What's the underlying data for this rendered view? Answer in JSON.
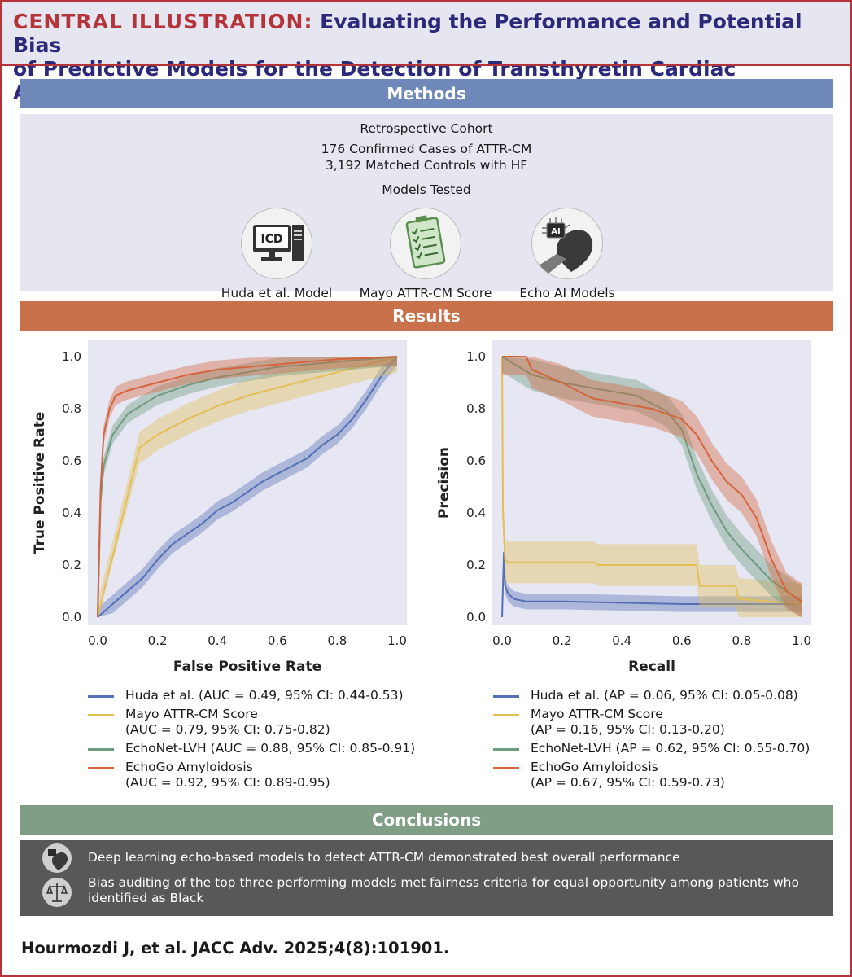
{
  "header": {
    "label": "CENTRAL ILLUSTRATION:",
    "title_line1": "Evaluating the Performance and Potential Bias",
    "title_line2": "of Predictive Models for the Detection of Transthyretin Cardiac Amyloidosis"
  },
  "methods": {
    "heading": "Methods",
    "cohort_title": "Retrospective Cohort",
    "cases": "176 Confirmed Cases of ATTR-CM",
    "controls": "3,192 Matched Controls with HF",
    "models_title": "Models Tested",
    "models": [
      {
        "label": "Huda et al. Model",
        "icon": "computer-icd-icon",
        "icon_text": "ICD"
      },
      {
        "label": "Mayo ATTR-CM Score",
        "icon": "clipboard-checklist-icon"
      },
      {
        "label": "Echo AI Models",
        "icon": "ai-heart-icon",
        "icon_text": "AI"
      }
    ],
    "bar_color": "#6e88b9"
  },
  "results": {
    "heading": "Results",
    "bar_color": "#c8714a"
  },
  "colors": {
    "huda": "#5570b5",
    "mayo": "#e3bf55",
    "echonet": "#6f9b7e",
    "echogo": "#d4643c",
    "plot_bg": "#e6e7f3"
  },
  "chart_data": [
    {
      "type": "line",
      "xlabel": "False Positive Rate",
      "ylabel": "True Positive Rate",
      "xlim": [
        0,
        1
      ],
      "ylim": [
        0,
        1
      ],
      "xticks": [
        "0.0",
        "0.2",
        "0.4",
        "0.6",
        "0.8",
        "1.0"
      ],
      "yticks": [
        "0.0",
        "0.2",
        "0.4",
        "0.6",
        "0.8",
        "1.0"
      ],
      "legend": [
        [
          "Huda et al. (AUC = 0.49, 95% CI: 0.44-0.53)"
        ],
        [
          "Mayo ATTR-CM Score",
          "(AUC = 0.79, 95% CI: 0.75-0.82)"
        ],
        [
          "EchoNet-LVH (AUC = 0.88, 95% CI: 0.85-0.91)"
        ],
        [
          "EchoGo Amyloidosis",
          "(AUC = 0.92, 95% CI: 0.89-0.95)"
        ]
      ],
      "series": [
        {
          "key": "huda",
          "x": [
            0,
            0.05,
            0.1,
            0.15,
            0.2,
            0.25,
            0.3,
            0.35,
            0.4,
            0.45,
            0.5,
            0.55,
            0.6,
            0.65,
            0.7,
            0.75,
            0.8,
            0.85,
            0.9,
            0.95,
            1.0
          ],
          "y": [
            0,
            0.05,
            0.1,
            0.15,
            0.22,
            0.28,
            0.32,
            0.36,
            0.41,
            0.44,
            0.48,
            0.52,
            0.55,
            0.58,
            0.61,
            0.66,
            0.7,
            0.76,
            0.84,
            0.93,
            1.0
          ],
          "band": 0.035
        },
        {
          "key": "mayo",
          "x": [
            0,
            0.14,
            0.2,
            0.3,
            0.4,
            0.5,
            0.6,
            0.7,
            0.8,
            0.9,
            1.0
          ],
          "y": [
            0,
            0.65,
            0.7,
            0.76,
            0.81,
            0.85,
            0.88,
            0.91,
            0.94,
            0.97,
            1.0
          ],
          "band": 0.06
        },
        {
          "key": "echonet",
          "x": [
            0,
            0.01,
            0.02,
            0.05,
            0.1,
            0.2,
            0.3,
            0.4,
            0.5,
            0.6,
            0.7,
            0.8,
            0.9,
            1.0
          ],
          "y": [
            0,
            0.45,
            0.58,
            0.7,
            0.78,
            0.85,
            0.89,
            0.92,
            0.94,
            0.96,
            0.97,
            0.98,
            0.99,
            1.0
          ],
          "band": 0.035
        },
        {
          "key": "echogo",
          "x": [
            0,
            0.01,
            0.02,
            0.04,
            0.06,
            0.1,
            0.2,
            0.3,
            0.4,
            0.5,
            0.6,
            0.7,
            0.8,
            0.9,
            1.0
          ],
          "y": [
            0,
            0.5,
            0.7,
            0.8,
            0.85,
            0.87,
            0.9,
            0.93,
            0.95,
            0.96,
            0.97,
            0.98,
            0.99,
            0.995,
            1.0
          ],
          "band": 0.035
        }
      ]
    },
    {
      "type": "line",
      "xlabel": "Recall",
      "ylabel": "Precision",
      "xlim": [
        0,
        1
      ],
      "ylim": [
        0,
        1
      ],
      "xticks": [
        "0.0",
        "0.2",
        "0.4",
        "0.6",
        "0.8",
        "1.0"
      ],
      "yticks": [
        "0.0",
        "0.2",
        "0.4",
        "0.6",
        "0.8",
        "1.0"
      ],
      "legend": [
        [
          "Huda et al. (AP = 0.06, 95% CI: 0.05-0.08)"
        ],
        [
          "Mayo ATTR-CM Score",
          "(AP = 0.16, 95% CI: 0.13-0.20)"
        ],
        [
          "EchoNet-LVH (AP = 0.62, 95% CI: 0.55-0.70)"
        ],
        [
          "EchoGo Amyloidosis",
          "(AP = 0.67, 95% CI: 0.59-0.73)"
        ]
      ],
      "series": [
        {
          "key": "huda",
          "x": [
            0,
            0.006,
            0.01,
            0.02,
            0.04,
            0.08,
            0.2,
            0.4,
            0.6,
            0.8,
            1.0
          ],
          "y": [
            0,
            0.25,
            0.12,
            0.09,
            0.07,
            0.06,
            0.06,
            0.055,
            0.05,
            0.05,
            0.05
          ],
          "band": 0.03
        },
        {
          "key": "mayo",
          "x": [
            0,
            0.003,
            0.01,
            0.02,
            0.31,
            0.32,
            0.65,
            0.66,
            0.78,
            0.79,
            1.0
          ],
          "y": [
            1.0,
            0.4,
            0.22,
            0.21,
            0.21,
            0.2,
            0.2,
            0.12,
            0.12,
            0.07,
            0.05
          ],
          "band": 0.08
        },
        {
          "key": "echonet",
          "x": [
            0,
            0.1,
            0.2,
            0.3,
            0.4,
            0.45,
            0.5,
            0.55,
            0.6,
            0.65,
            0.7,
            0.75,
            0.8,
            0.85,
            0.9,
            0.95,
            1.0
          ],
          "y": [
            1.0,
            0.93,
            0.9,
            0.88,
            0.86,
            0.85,
            0.82,
            0.79,
            0.72,
            0.55,
            0.43,
            0.33,
            0.26,
            0.2,
            0.14,
            0.1,
            0.06
          ],
          "band": 0.06
        },
        {
          "key": "echogo",
          "x": [
            0,
            0.08,
            0.1,
            0.2,
            0.3,
            0.4,
            0.5,
            0.6,
            0.65,
            0.7,
            0.75,
            0.8,
            0.85,
            0.9,
            0.95,
            1.0
          ],
          "y": [
            1.0,
            1.0,
            0.95,
            0.9,
            0.84,
            0.82,
            0.8,
            0.76,
            0.7,
            0.6,
            0.52,
            0.47,
            0.38,
            0.22,
            0.1,
            0.06
          ],
          "band": 0.07
        }
      ]
    }
  ],
  "conclusions": {
    "heading": "Conclusions",
    "bar_color": "#809e86",
    "items": [
      {
        "text": "Deep learning echo-based models to detect ATTR-CM demonstrated best overall performance",
        "icon": "ai-heart-icon"
      },
      {
        "text": "Bias auditing of the top three performing models met fairness criteria for equal opportunity among patients who identified as Black",
        "icon": "scales-of-justice-icon"
      }
    ]
  },
  "citation": "Hourmozdi J, et al. JACC Adv. 2025;4(8):101901."
}
